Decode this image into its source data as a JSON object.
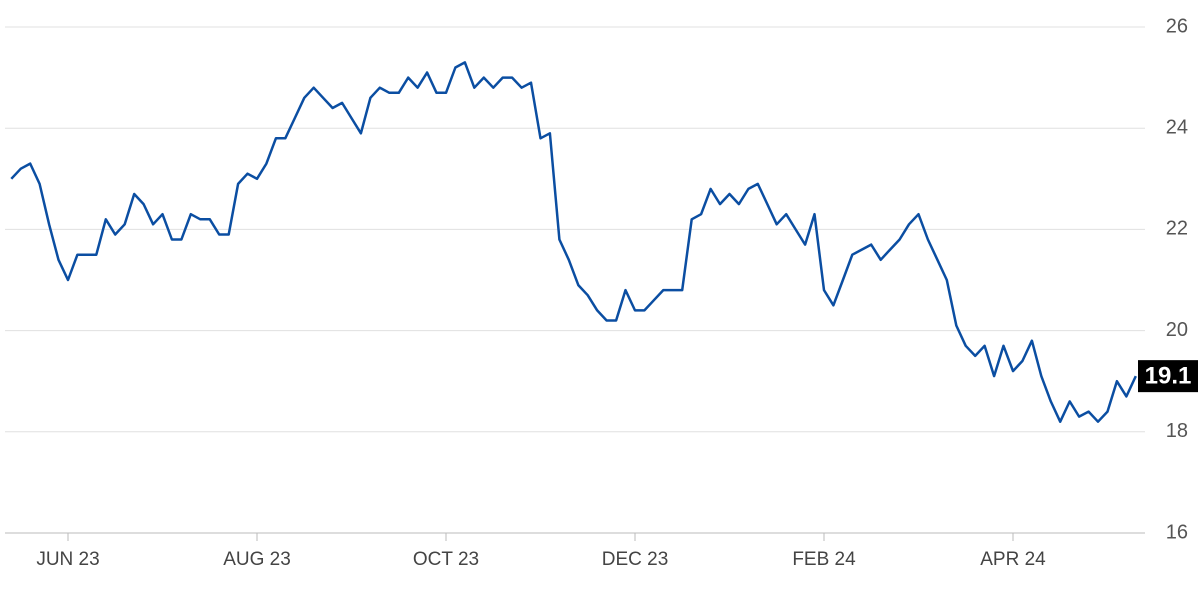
{
  "chart_data": {
    "type": "line",
    "categories": [
      null,
      null,
      null,
      null,
      null,
      null,
      "JUN 23",
      null,
      null,
      null,
      null,
      null,
      null,
      null,
      null,
      null,
      null,
      null,
      null,
      null,
      null,
      null,
      null,
      null,
      null,
      null,
      "AUG 23",
      null,
      null,
      null,
      null,
      null,
      null,
      null,
      null,
      null,
      null,
      null,
      null,
      null,
      null,
      null,
      null,
      null,
      null,
      null,
      "OCT 23",
      null,
      null,
      null,
      null,
      null,
      null,
      null,
      null,
      null,
      null,
      null,
      null,
      null,
      null,
      null,
      null,
      null,
      null,
      null,
      "DEC 23",
      null,
      null,
      null,
      null,
      null,
      null,
      null,
      null,
      null,
      null,
      null,
      null,
      null,
      null,
      null,
      null,
      null,
      null,
      null,
      "FEB 24",
      null,
      null,
      null,
      null,
      null,
      null,
      null,
      null,
      null,
      null,
      null,
      null,
      null,
      null,
      null,
      null,
      null,
      null,
      null,
      "APR 24",
      null,
      null,
      null,
      null,
      null,
      null,
      null,
      null,
      null,
      null,
      null,
      null,
      null
    ],
    "series": [
      {
        "color": "#0b4ea2",
        "values": [
          23.0,
          23.2,
          23.3,
          22.9,
          22.1,
          21.4,
          21.0,
          21.5,
          21.5,
          21.5,
          22.2,
          21.9,
          22.1,
          22.7,
          22.5,
          22.1,
          22.3,
          21.8,
          21.8,
          22.3,
          22.2,
          22.2,
          21.9,
          21.9,
          22.9,
          23.1,
          23.0,
          23.3,
          23.8,
          23.8,
          24.2,
          24.6,
          24.8,
          24.6,
          24.4,
          24.5,
          24.2,
          23.9,
          24.6,
          24.8,
          24.7,
          24.7,
          25.0,
          24.8,
          25.1,
          24.7,
          24.7,
          25.2,
          25.3,
          24.8,
          25.0,
          24.8,
          25.0,
          25.0,
          24.8,
          24.9,
          23.8,
          23.9,
          21.8,
          21.4,
          20.9,
          20.7,
          20.4,
          20.2,
          20.2,
          20.8,
          20.4,
          20.4,
          20.6,
          20.8,
          20.8,
          20.8,
          22.2,
          22.3,
          22.8,
          22.5,
          22.7,
          22.5,
          22.8,
          22.9,
          22.5,
          22.1,
          22.3,
          22.0,
          21.7,
          22.3,
          20.8,
          20.5,
          21.0,
          21.5,
          21.6,
          21.7,
          21.4,
          21.6,
          21.8,
          22.1,
          22.3,
          21.8,
          21.4,
          21.0,
          20.1,
          19.7,
          19.5,
          19.7,
          19.1,
          19.7,
          19.2,
          19.4,
          19.8,
          19.1,
          18.6,
          18.2,
          18.6,
          18.3,
          18.4,
          18.2,
          18.4,
          19.0,
          18.7,
          19.1
        ]
      }
    ],
    "ylim": [
      16,
      26
    ],
    "yticks": [
      16,
      18,
      20,
      22,
      24,
      26
    ],
    "grid": true
  }
}
